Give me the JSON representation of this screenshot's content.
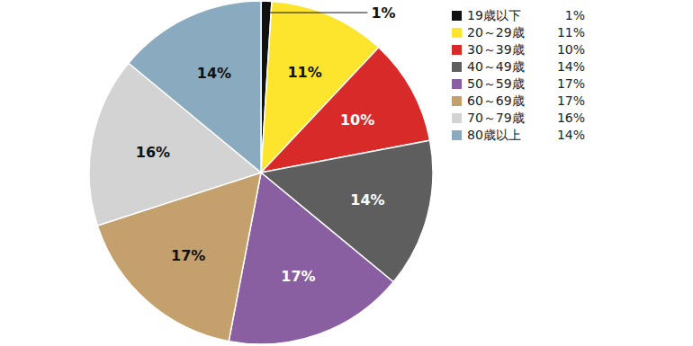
{
  "chart_data": {
    "type": "pie",
    "categories": [
      "19歳以下",
      "20～29歳",
      "30～39歳",
      "40～49歳",
      "50～59歳",
      "60～69歳",
      "70～79歳",
      "80歳以上"
    ],
    "values": [
      1,
      11,
      10,
      14,
      17,
      17,
      16,
      14
    ],
    "value_labels": [
      "1%",
      "11%",
      "10%",
      "14%",
      "17%",
      "17%",
      "16%",
      "14%"
    ],
    "colors": [
      "#111111",
      "#fde52e",
      "#d82a28",
      "#5e5e5e",
      "#8a5fa2",
      "#c4a06c",
      "#d3d3d3",
      "#8aaac0"
    ],
    "data_labels": true,
    "legend": "right"
  }
}
